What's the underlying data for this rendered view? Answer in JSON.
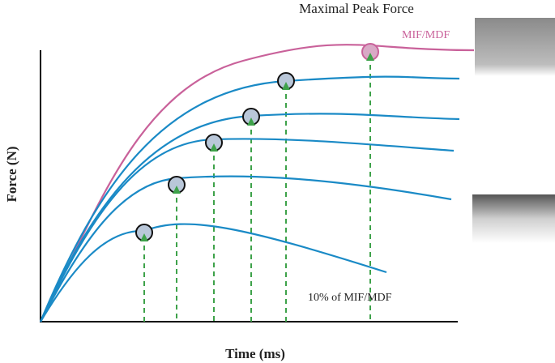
{
  "title": "Maximal Peak Force",
  "curve_label": "MIF/MDF",
  "y_axis_label": "Force (N)",
  "x_axis_label": "Time (ms)",
  "annotation": "10% of MIF/MDF"
}
